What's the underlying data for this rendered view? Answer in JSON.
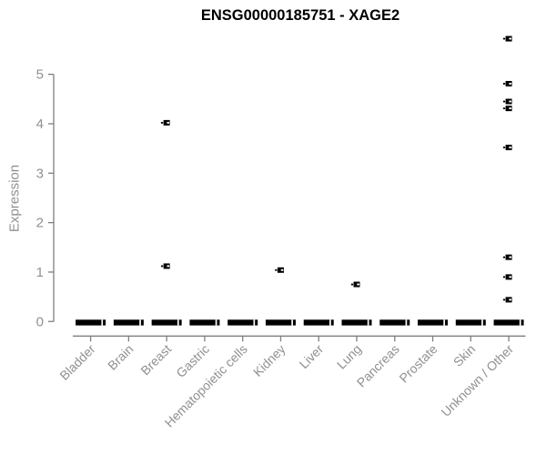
{
  "header": {
    "title": "ENSG00000185751 - XAGE2"
  },
  "chart_data": {
    "type": "scatter",
    "subtype": "boxplot-with-outliers (all boxes collapsed at 0, outliers drawn as small open squares)",
    "title": "ENSG00000185751 - XAGE2",
    "xlabel": "",
    "ylabel": "Expression",
    "ylim": [
      0,
      5.9
    ],
    "yticks": [
      0,
      1,
      2,
      3,
      4,
      5
    ],
    "grid": false,
    "legend": "none",
    "categories": [
      "Bladder",
      "Brain",
      "Breast",
      "Gastric",
      "Hematopoietic cells",
      "Kidney",
      "Liver",
      "Lung",
      "Pancreas",
      "Prostate",
      "Skin",
      "Unknown / Other"
    ],
    "baseline_bars": {
      "value": 0,
      "applies_to": "every category",
      "description": "thick black horizontal bar at expression 0"
    },
    "outlier_points": [
      {
        "category": "Breast",
        "values": [
          4.02,
          1.12
        ]
      },
      {
        "category": "Kidney",
        "values": [
          1.04
        ]
      },
      {
        "category": "Lung",
        "values": [
          0.75
        ]
      },
      {
        "category": "Unknown / Other",
        "values": [
          5.72,
          4.81,
          4.45,
          4.31,
          3.52,
          1.3,
          0.9,
          0.44
        ]
      }
    ]
  },
  "colors": {
    "title": "#000000",
    "axis_line": "#7f7f7f",
    "tick_label": "#909090",
    "data": "#000000",
    "background": "#ffffff"
  }
}
